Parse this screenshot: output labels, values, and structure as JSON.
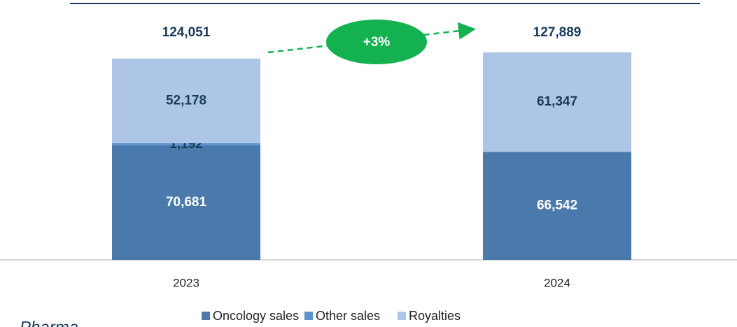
{
  "chart_data": {
    "type": "stacked_bar",
    "categories": [
      "2023",
      "2024"
    ],
    "series": [
      {
        "name": "Oncology sales",
        "color": "#4a7aab",
        "values": [
          70681,
          66542
        ],
        "value_labels": [
          "70,681",
          "66,542"
        ]
      },
      {
        "name": "Other sales",
        "color": "#5b93cf",
        "values": [
          1192,
          0
        ],
        "value_labels": [
          "1,192",
          null
        ]
      },
      {
        "name": "Royalties",
        "color": "#adc5e6",
        "values": [
          52178,
          61347
        ],
        "value_labels": [
          "52,178",
          "61,347"
        ]
      }
    ],
    "totals": {
      "values": [
        124051,
        127889
      ],
      "labels": [
        "124,051",
        "127,889"
      ]
    },
    "annotation": "+3%",
    "footer": "Pharma",
    "ylim": [
      0,
      130000
    ],
    "legend": "bottom"
  }
}
